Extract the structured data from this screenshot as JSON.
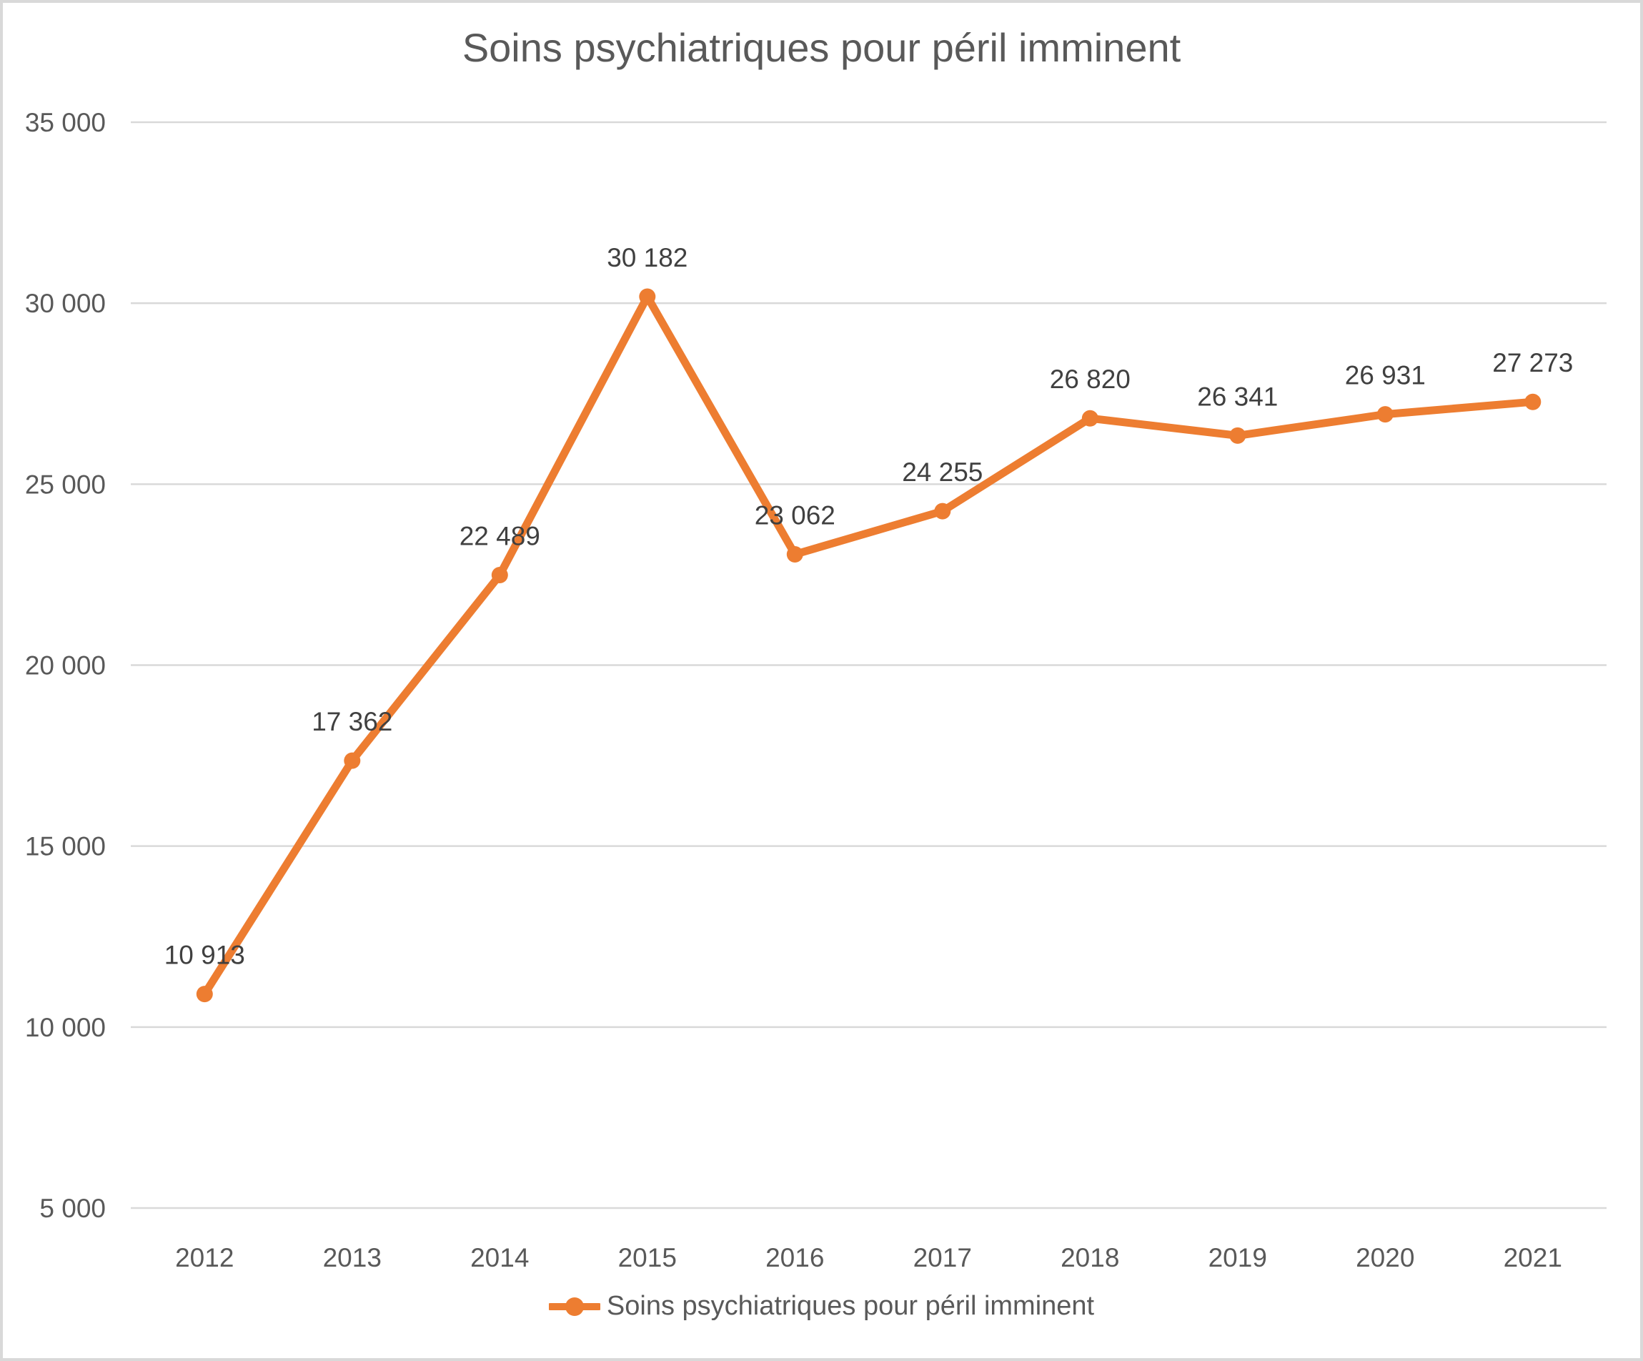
{
  "chart_data": {
    "type": "line",
    "title": "Soins psychiatriques pour péril imminent",
    "categories": [
      "2012",
      "2013",
      "2014",
      "2015",
      "2016",
      "2017",
      "2018",
      "2019",
      "2020",
      "2021"
    ],
    "series": [
      {
        "name": "Soins psychiatriques pour péril imminent",
        "values": [
          10913,
          17362,
          22489,
          30182,
          23062,
          24255,
          26820,
          26341,
          26931,
          27273
        ]
      }
    ],
    "data_labels": [
      "10 913",
      "17 362",
      "22 489",
      "30 182",
      "23 062",
      "24 255",
      "26 820",
      "26 341",
      "26 931",
      "27 273"
    ],
    "y_axis": {
      "min": 5000,
      "max": 35000,
      "step": 5000,
      "tick_labels": [
        "5 000",
        "10 000",
        "15 000",
        "20 000",
        "25 000",
        "30 000",
        "35 000"
      ]
    },
    "x_axis": {
      "tick_labels": [
        "2012",
        "2013",
        "2014",
        "2015",
        "2016",
        "2017",
        "2018",
        "2019",
        "2020",
        "2021"
      ]
    },
    "legend": {
      "position": "bottom",
      "entries": [
        "Soins psychiatriques pour péril imminent"
      ]
    },
    "grid": "horizontal",
    "colors": {
      "series": "#ED7D31",
      "gridline": "#D9D9D9",
      "frame_border": "#D9D9D9",
      "title_text": "#595959",
      "axis_text": "#595959",
      "data_label_text": "#404040",
      "background": "#FFFFFF"
    }
  }
}
